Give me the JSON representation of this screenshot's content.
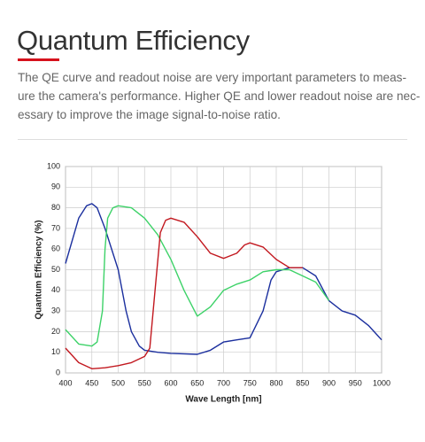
{
  "header": {
    "title": "Quantum Efficiency",
    "lines": [
      "The QE curve and readout noise are very important parameters to meas-",
      "ure the camera's performance. Higher QE and lower readout noise are nec-",
      "essary to improve the image signal-to-noise ratio."
    ]
  },
  "chart_data": {
    "type": "line",
    "x_label": "Wave Length [nm]",
    "y_label": "Quantum Efficiency (%)",
    "xlim": [
      400,
      1000
    ],
    "ylim": [
      0,
      100
    ],
    "xticks": [
      400,
      450,
      500,
      550,
      600,
      650,
      700,
      750,
      800,
      850,
      900,
      950,
      1000
    ],
    "yticks": [
      0,
      10,
      20,
      30,
      40,
      50,
      60,
      70,
      80,
      90,
      100
    ],
    "grid": true,
    "series": [
      {
        "color": "#1b2f9e",
        "x": [
          400,
          425,
          440,
          450,
          460,
          475,
          500,
          515,
          525,
          540,
          550,
          575,
          600,
          650,
          675,
          700,
          725,
          750,
          775,
          790,
          800,
          825,
          850,
          875,
          900,
          925,
          950,
          975,
          1000
        ],
        "values": [
          53,
          75,
          81,
          82,
          80,
          70,
          50,
          30,
          20,
          13,
          11,
          10,
          9.5,
          9,
          11,
          15,
          16,
          17,
          30,
          45,
          49,
          51,
          51,
          47,
          35,
          30,
          28,
          23,
          16
        ]
      },
      {
        "color": "#3dd268",
        "x": [
          400,
          425,
          450,
          460,
          470,
          475,
          480,
          490,
          500,
          525,
          550,
          575,
          600,
          625,
          650,
          675,
          700,
          725,
          750,
          775,
          800,
          825,
          850,
          875,
          900
        ],
        "values": [
          21,
          14,
          13,
          15,
          30,
          60,
          75,
          80,
          81,
          80,
          75,
          67,
          55,
          40,
          27.5,
          32,
          40,
          43,
          45,
          49,
          50,
          50,
          47,
          44,
          35
        ]
      },
      {
        "color": "#c2181f",
        "x": [
          400,
          425,
          450,
          475,
          500,
          525,
          550,
          560,
          570,
          580,
          590,
          600,
          625,
          650,
          675,
          700,
          725,
          740,
          750,
          775,
          800,
          825,
          850
        ],
        "values": [
          12,
          5,
          2,
          2.5,
          3.5,
          5,
          8,
          12,
          40,
          68,
          74,
          75,
          73,
          66,
          58,
          55.5,
          58,
          62,
          63,
          61,
          55,
          51,
          51
        ]
      }
    ]
  }
}
